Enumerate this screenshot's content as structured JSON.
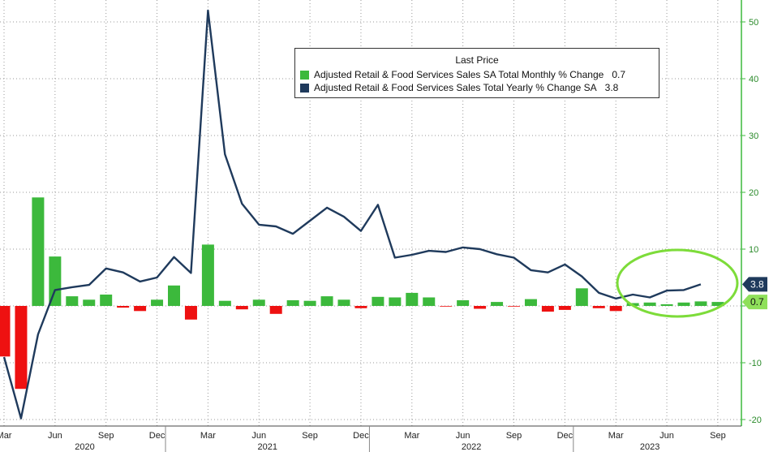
{
  "chart_data": {
    "type": "bar+line",
    "colors": {
      "monthly_pos": "#3cb93c",
      "monthly_neg": "#ee1111",
      "yearly": "#1f3a5c",
      "highlight_circle": "#7ddc3a",
      "axis": "#3cb93c"
    },
    "yaxis": {
      "ticks": [
        -20,
        -10,
        0,
        10,
        20,
        30,
        40,
        50
      ],
      "ylim": [
        -21,
        54
      ],
      "position": "right"
    },
    "x_months": [
      "Mar 2020",
      "Apr 2020",
      "May 2020",
      "Jun 2020",
      "Jul 2020",
      "Aug 2020",
      "Sep 2020",
      "Oct 2020",
      "Nov 2020",
      "Dec 2020",
      "Jan 2021",
      "Feb 2021",
      "Mar 2021",
      "Apr 2021",
      "May 2021",
      "Jun 2021",
      "Jul 2021",
      "Aug 2021",
      "Sep 2021",
      "Oct 2021",
      "Nov 2021",
      "Dec 2021",
      "Jan 2022",
      "Feb 2022",
      "Mar 2022",
      "Apr 2022",
      "May 2022",
      "Jun 2022",
      "Jul 2022",
      "Aug 2022",
      "Sep 2022",
      "Oct 2022",
      "Nov 2022",
      "Dec 2022",
      "Jan 2023",
      "Feb 2023",
      "Mar 2023",
      "Apr 2023",
      "May 2023",
      "Jun 2023",
      "Jul 2023",
      "Aug 2023",
      "Sep 2023"
    ],
    "month_ticks": [
      "Mar",
      "Jun",
      "Sep",
      "Dec",
      "Mar",
      "Jun",
      "Sep",
      "Dec",
      "Mar",
      "Jun",
      "Sep",
      "Dec",
      "Mar",
      "Jun",
      "Sep"
    ],
    "years": [
      "2020",
      "2021",
      "2022",
      "2023"
    ],
    "series": [
      {
        "name": "Adjusted Retail & Food Services Sales SA Total Monthly % Change",
        "kind": "bar",
        "last": "0.7",
        "values": [
          -8.9,
          -14.6,
          19.1,
          8.7,
          1.7,
          1.1,
          2.0,
          -0.3,
          -0.9,
          1.1,
          3.6,
          -2.4,
          10.8,
          0.9,
          -0.6,
          1.1,
          -1.4,
          1.0,
          0.9,
          1.7,
          1.1,
          -0.4,
          1.6,
          1.5,
          2.3,
          1.5,
          -0.1,
          1.0,
          -0.5,
          0.7,
          -0.1,
          1.2,
          -1.0,
          -0.7,
          3.1,
          -0.4,
          -0.9,
          0.5,
          0.6,
          0.3,
          0.6,
          0.8,
          0.7
        ]
      },
      {
        "name": "Adjusted Retail & Food Services Sales Total Yearly % Change SA",
        "kind": "line",
        "last": "3.8",
        "values": [
          -9.0,
          -19.8,
          -5.0,
          2.8,
          3.3,
          3.7,
          6.6,
          5.9,
          4.3,
          5.0,
          8.6,
          5.8,
          52.0,
          26.7,
          18.0,
          14.3,
          14.0,
          12.7,
          15.0,
          17.3,
          15.7,
          13.2,
          17.8,
          8.5,
          9.0,
          9.7,
          9.5,
          10.3,
          10.0,
          9.1,
          8.5,
          6.3,
          5.9,
          7.3,
          5.2,
          2.3,
          1.3,
          2.0,
          1.5,
          2.7,
          2.8,
          3.8,
          null
        ]
      }
    ],
    "legend": {
      "title": "Last Price",
      "placement": "top-center"
    },
    "grid": true
  }
}
